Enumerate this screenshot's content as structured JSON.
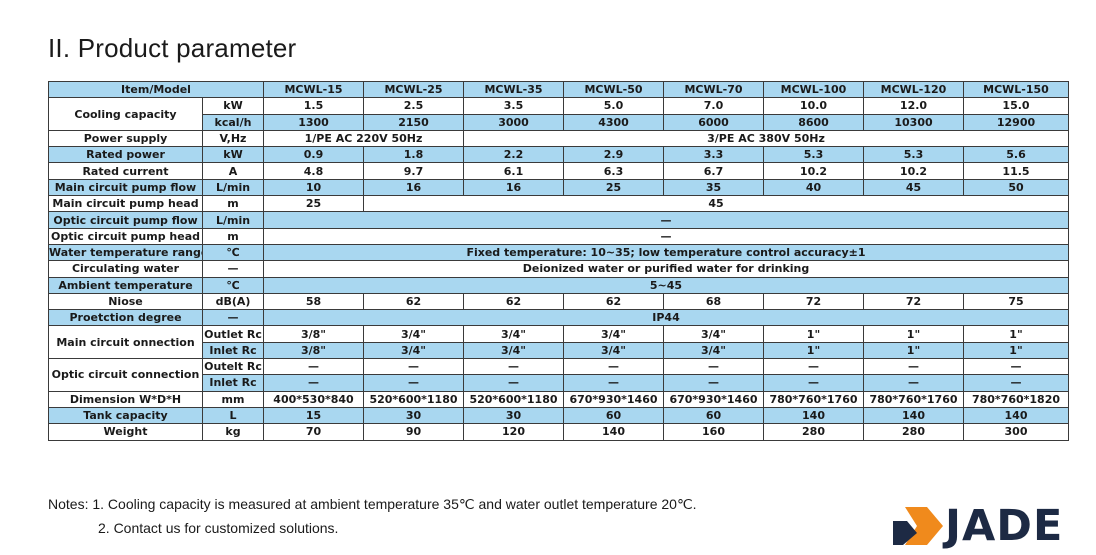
{
  "title": "II. Product parameter",
  "table": {
    "header_label": "Item/Model",
    "models": [
      "MCWL-15",
      "MCWL-25",
      "MCWL-35",
      "MCWL-50",
      "MCWL-70",
      "MCWL-100",
      "MCWL-120",
      "MCWL-150"
    ],
    "cooling_capacity": {
      "label": "Cooling capacity",
      "kw_unit": "kW",
      "kw_values": [
        "1.5",
        "2.5",
        "3.5",
        "5.0",
        "7.0",
        "10.0",
        "12.0",
        "15.0"
      ],
      "kcal_unit": "kcal/h",
      "kcal_values": [
        "1300",
        "2150",
        "3000",
        "4300",
        "6000",
        "8600",
        "10300",
        "12900"
      ]
    },
    "power_supply": {
      "label": "Power supply",
      "unit": "V,Hz",
      "single_phase": "1/PE AC 220V 50Hz",
      "three_phase": "3/PE AC 380V 50Hz"
    },
    "rated_power": {
      "label": "Rated power",
      "unit": "kW",
      "values": [
        "0.9",
        "1.8",
        "2.2",
        "2.9",
        "3.3",
        "5.3",
        "5.3",
        "5.6"
      ]
    },
    "rated_current": {
      "label": "Rated current",
      "unit": "A",
      "values": [
        "4.8",
        "9.7",
        "6.1",
        "6.3",
        "6.7",
        "10.2",
        "10.2",
        "11.5"
      ]
    },
    "main_pump_flow": {
      "label": "Main circuit pump flow",
      "unit": "L/min",
      "values": [
        "10",
        "16",
        "16",
        "25",
        "35",
        "40",
        "45",
        "50"
      ]
    },
    "main_pump_head": {
      "label": "Main circuit pump head",
      "unit": "m",
      "first": "25",
      "rest": "45"
    },
    "optic_pump_flow": {
      "label": "Optic circuit pump flow",
      "unit": "L/min",
      "value": "—"
    },
    "optic_pump_head": {
      "label": "Optic circuit pump head",
      "unit": "m",
      "value": "—"
    },
    "water_temp_range": {
      "label": "Water temperature range",
      "unit": "℃",
      "value": "Fixed temperature: 10~35;  low temperature control accuracy±1"
    },
    "circulating_water": {
      "label": "Circulating water",
      "unit": "—",
      "value": "Deionized water or purified water for drinking"
    },
    "ambient_temp": {
      "label": "Ambient temperature",
      "unit": "℃",
      "value": "5~45"
    },
    "noise": {
      "label": "Niose",
      "unit": "dB(A)",
      "values": [
        "58",
        "62",
        "62",
        "62",
        "68",
        "72",
        "72",
        "75"
      ]
    },
    "protection": {
      "label": "Proetction degree",
      "unit": "—",
      "value": "IP44"
    },
    "main_connection": {
      "label": "Main circuit onnection",
      "outlet_unit": "Outlet Rc",
      "outlet_values": [
        "3/8\"",
        "3/4\"",
        "3/4\"",
        "3/4\"",
        "3/4\"",
        "1\"",
        "1\"",
        "1\""
      ],
      "inlet_unit": "Inlet Rc",
      "inlet_values": [
        "3/8\"",
        "3/4\"",
        "3/4\"",
        "3/4\"",
        "3/4\"",
        "1\"",
        "1\"",
        "1\""
      ]
    },
    "optic_connection": {
      "label": "Optic circuit connection",
      "outlet_unit": "Outelt Rc",
      "outlet_values": [
        "—",
        "—",
        "—",
        "—",
        "—",
        "—",
        "—",
        "—"
      ],
      "inlet_unit": "Inlet Rc",
      "inlet_values": [
        "—",
        "—",
        "—",
        "—",
        "—",
        "—",
        "—",
        "—"
      ]
    },
    "dimension": {
      "label": "Dimension W*D*H",
      "unit": "mm",
      "values": [
        "400*530*840",
        "520*600*1180",
        "520*600*1180",
        "670*930*1460",
        "670*930*1460",
        "780*760*1760",
        "780*760*1760",
        "780*760*1820"
      ]
    },
    "tank_capacity": {
      "label": "Tank capacity",
      "unit": "L",
      "values": [
        "15",
        "30",
        "30",
        "60",
        "60",
        "140",
        "140",
        "140"
      ]
    },
    "weight": {
      "label": "Weight",
      "unit": "kg",
      "values": [
        "70",
        "90",
        "120",
        "140",
        "160",
        "280",
        "280",
        "300"
      ]
    }
  },
  "notes": {
    "line1": "Notes: 1. Cooling capacity is measured at ambient temperature 35℃ and water outlet temperature 20℃.",
    "line2": "2. Contact us for customized solutions."
  },
  "logo": {
    "text": "JADE",
    "icon": "jade-logo-icon",
    "colors": {
      "orange": "#f08a1c",
      "navy": "#1d2a44"
    }
  },
  "colors": {
    "row_highlight": "#a9d7f0",
    "border": "#3a3a3a"
  }
}
